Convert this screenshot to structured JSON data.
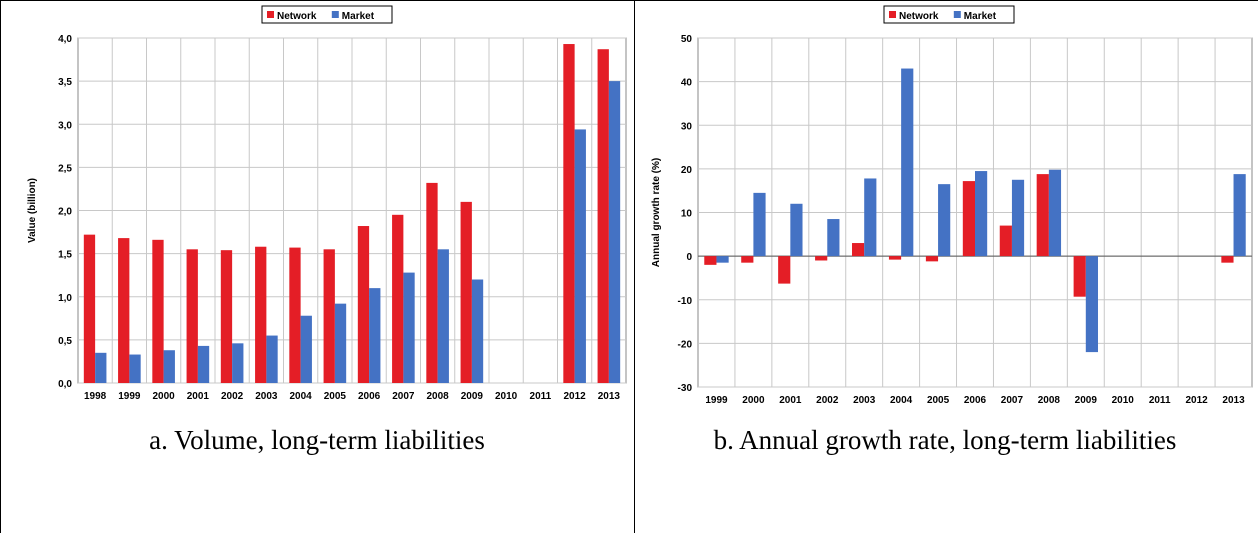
{
  "colors": {
    "network": "#e41e26",
    "market": "#4472c4",
    "grid": "#c8c8c8"
  },
  "captions": {
    "a": "a. Volume, long-term liabilities",
    "b": "b. Annual growth rate, long-term liabilities"
  },
  "chart_data": [
    {
      "type": "bar",
      "legend_position": "top-center",
      "grid": true,
      "ylabel": "Value (billion)",
      "xlabel": "",
      "ylim": [
        0,
        4.0
      ],
      "yticks": [
        0,
        0.5,
        1.0,
        1.5,
        2.0,
        2.5,
        3.0,
        3.5,
        4.0
      ],
      "ytick_labels": [
        "0,0",
        "0,5",
        "1,0",
        "1,5",
        "2,0",
        "2,5",
        "3,0",
        "3,5",
        "4,0"
      ],
      "categories": [
        "1998",
        "1999",
        "2000",
        "2001",
        "2002",
        "2003",
        "2004",
        "2005",
        "2006",
        "2007",
        "2008",
        "2009",
        "2010",
        "2011",
        "2012",
        "2013"
      ],
      "series": [
        {
          "name": "Network",
          "values": [
            1.72,
            1.68,
            1.66,
            1.55,
            1.54,
            1.58,
            1.57,
            1.55,
            1.82,
            1.95,
            2.32,
            2.1,
            null,
            null,
            3.93,
            3.87
          ]
        },
        {
          "name": "Market",
          "values": [
            0.35,
            0.33,
            0.38,
            0.43,
            0.46,
            0.55,
            0.78,
            0.92,
            1.1,
            1.28,
            1.55,
            1.2,
            null,
            null,
            2.94,
            3.5
          ]
        }
      ]
    },
    {
      "type": "bar",
      "legend_position": "top-center",
      "grid": true,
      "ylabel": "Annual growth rate (%)",
      "xlabel": "",
      "ylim": [
        -30,
        50
      ],
      "yticks": [
        -30,
        -20,
        -10,
        0,
        10,
        20,
        30,
        40,
        50
      ],
      "ytick_labels": [
        "-30",
        "-20",
        "-10",
        "0",
        "10",
        "20",
        "30",
        "40",
        "50"
      ],
      "categories": [
        "1999",
        "2000",
        "2001",
        "2002",
        "2003",
        "2004",
        "2005",
        "2006",
        "2007",
        "2008",
        "2009",
        "2010",
        "2011",
        "2012",
        "2013"
      ],
      "series": [
        {
          "name": "Network",
          "values": [
            -2,
            -1.5,
            -6.3,
            -1,
            3,
            -0.8,
            -1.2,
            17.2,
            7,
            18.8,
            -9.3,
            null,
            null,
            null,
            -1.5
          ]
        },
        {
          "name": "Market",
          "values": [
            -1.5,
            14.5,
            12,
            8.5,
            17.8,
            43,
            16.5,
            19.5,
            17.5,
            19.8,
            -22,
            null,
            null,
            null,
            18.8
          ]
        }
      ]
    }
  ]
}
